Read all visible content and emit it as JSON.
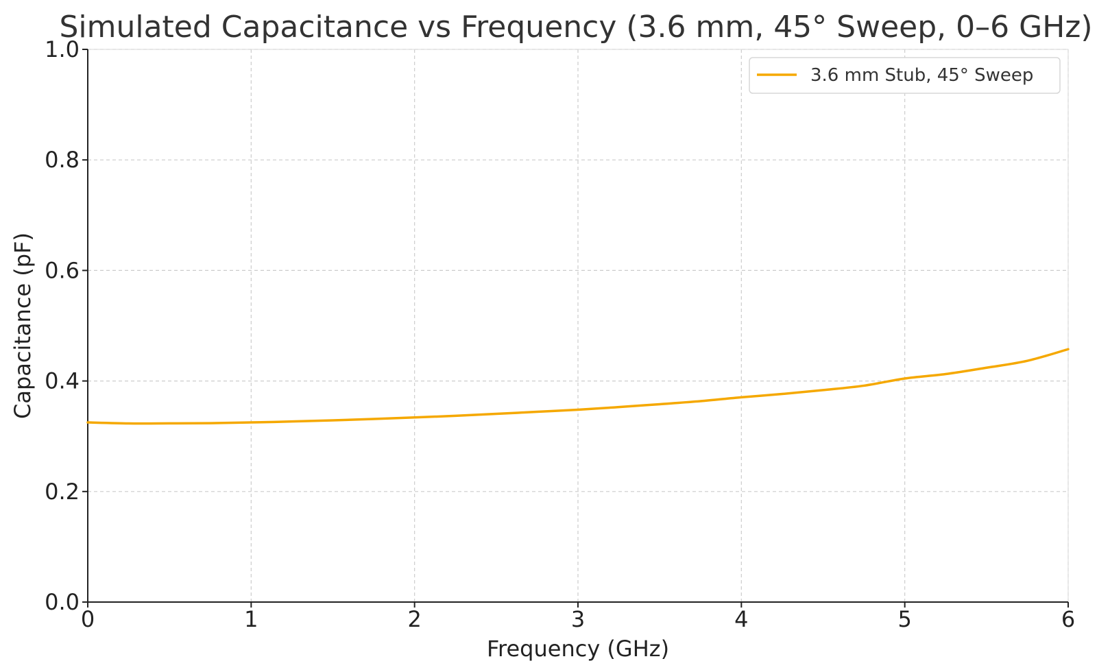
{
  "chart_data": {
    "type": "line",
    "title": "Simulated Capacitance vs Frequency (3.6 mm, 45° Sweep, 0–6 GHz)",
    "xlabel": "Frequency (GHz)",
    "ylabel": "Capacitance (pF)",
    "xlim": [
      0,
      6
    ],
    "ylim": [
      0,
      1.0
    ],
    "x_ticks": [
      "0",
      "1",
      "2",
      "3",
      "4",
      "5",
      "6"
    ],
    "y_ticks": [
      "0.0",
      "0.2",
      "0.4",
      "0.6",
      "0.8",
      "1.0"
    ],
    "grid": true,
    "legend_position": "top-right",
    "series": [
      {
        "name": "3.6 mm Stub, 45° Sweep",
        "color": "#f5a800",
        "x": [
          0,
          0.25,
          0.5,
          0.75,
          1,
          1.25,
          1.5,
          1.75,
          2,
          2.25,
          2.5,
          2.75,
          3,
          3.25,
          3.5,
          3.75,
          4,
          4.25,
          4.5,
          4.75,
          5,
          5.25,
          5.5,
          5.75,
          6
        ],
        "y": [
          0.325,
          0.3232,
          0.3233,
          0.3237,
          0.325,
          0.3267,
          0.3288,
          0.3313,
          0.334,
          0.337,
          0.3405,
          0.3443,
          0.348,
          0.3528,
          0.358,
          0.3635,
          0.3705,
          0.3765,
          0.3835,
          0.3915,
          0.4045,
          0.4125,
          0.424,
          0.4365,
          0.4575
        ]
      }
    ]
  }
}
